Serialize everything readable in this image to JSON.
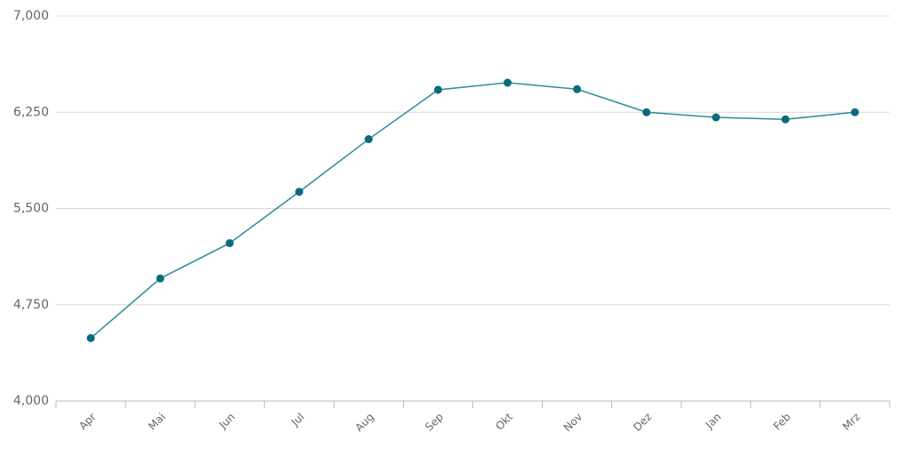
{
  "chart_data": {
    "type": "line",
    "categories": [
      "Apr",
      "Mai",
      "Jun",
      "Jul",
      "Aug",
      "Sep",
      "Okt",
      "Nov",
      "Dez",
      "Jan",
      "Feb",
      "Mrz"
    ],
    "series": [
      {
        "color": "#2e8b9c",
        "marker_color": "#0b6b7d",
        "values": [
          4490,
          4955,
          5230,
          5630,
          6040,
          6425,
          6480,
          6430,
          6250,
          6210,
          6195,
          6250
        ]
      }
    ],
    "ylim": [
      4000,
      7000
    ],
    "yticks": [
      {
        "value": 4000,
        "label": "4,000"
      },
      {
        "value": 4750,
        "label": "4,750"
      },
      {
        "value": 5500,
        "label": "5,500"
      },
      {
        "value": 6250,
        "label": "6,250"
      },
      {
        "value": 7000,
        "label": "7,000"
      }
    ],
    "grid": true
  }
}
